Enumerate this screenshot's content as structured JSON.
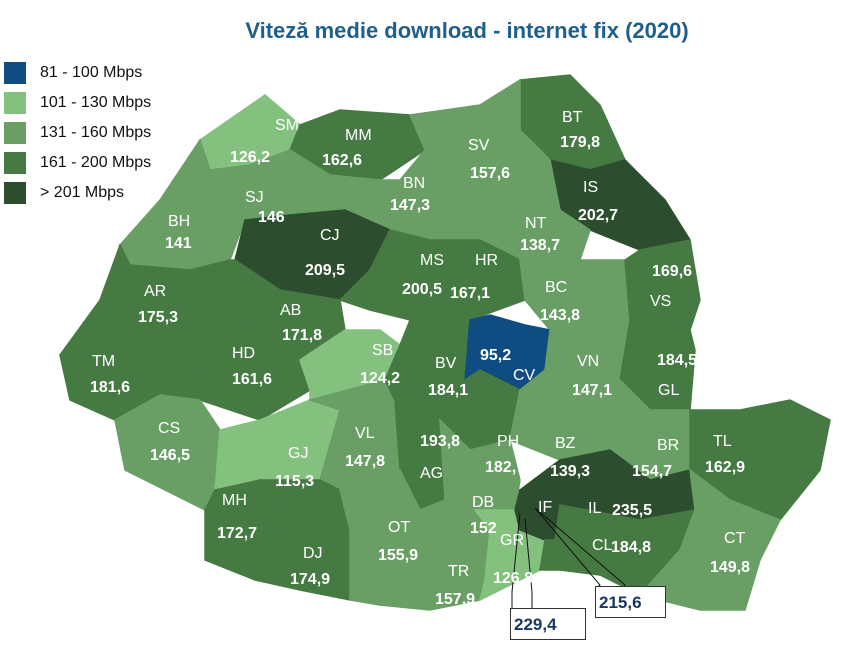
{
  "title": "Viteză medie download - internet fix (2020)",
  "legend": [
    {
      "key": "c1",
      "label": "81 - 100 Mbps",
      "color": "#0f4c81"
    },
    {
      "key": "c2",
      "label": "101 - 130 Mbps",
      "color": "#84c17f"
    },
    {
      "key": "c3",
      "label": "131 - 160 Mbps",
      "color": "#699f65"
    },
    {
      "key": "c4",
      "label": "161 - 200 Mbps",
      "color": "#467a43"
    },
    {
      "key": "c5",
      "label": "> 201 Mbps",
      "color": "#2d4e2e"
    }
  ],
  "counties": [
    {
      "code": "SM",
      "value": "126,2",
      "cat": "c2"
    },
    {
      "code": "MM",
      "value": "162,6",
      "cat": "c4"
    },
    {
      "code": "BT",
      "value": "179,8",
      "cat": "c4"
    },
    {
      "code": "SV",
      "value": "157,6",
      "cat": "c3"
    },
    {
      "code": "IS",
      "value": "202,7",
      "cat": "c5"
    },
    {
      "code": "NT",
      "value": "138,7",
      "cat": "c3"
    },
    {
      "code": "BN",
      "value": "147,3",
      "cat": "c3"
    },
    {
      "code": "SJ",
      "value": "146",
      "cat": "c3"
    },
    {
      "code": "BH",
      "value": "141",
      "cat": "c3"
    },
    {
      "code": "CJ",
      "value": "209,5",
      "cat": "c5"
    },
    {
      "code": "MS",
      "value": "200,5",
      "cat": "c4"
    },
    {
      "code": "HR",
      "value": "167,1",
      "cat": "c4"
    },
    {
      "code": "BC",
      "value": "143,8",
      "cat": "c3"
    },
    {
      "code": "VS",
      "value": "169,6",
      "cat": "c4"
    },
    {
      "code": "AR",
      "value": "175,3",
      "cat": "c4"
    },
    {
      "code": "AB",
      "value": "171,8",
      "cat": "c4"
    },
    {
      "code": "TM",
      "value": "181,6",
      "cat": "c4"
    },
    {
      "code": "HD",
      "value": "161,6",
      "cat": "c4"
    },
    {
      "code": "SB",
      "value": "124,2",
      "cat": "c2"
    },
    {
      "code": "BV",
      "value": "184,1",
      "cat": "c4"
    },
    {
      "code": "CV",
      "value": "95,2",
      "cat": "c1"
    },
    {
      "code": "VN",
      "value": "147,1",
      "cat": "c3"
    },
    {
      "code": "GL",
      "value": "184,5",
      "cat": "c4"
    },
    {
      "code": "CS",
      "value": "146,5",
      "cat": "c3"
    },
    {
      "code": "GJ",
      "value": "115,3",
      "cat": "c2"
    },
    {
      "code": "VL",
      "value": "147,8",
      "cat": "c3"
    },
    {
      "code": "AG",
      "value": "193,8",
      "cat": "c4"
    },
    {
      "code": "PH",
      "value": "182,7",
      "cat": "c4"
    },
    {
      "code": "BZ",
      "value": "139,3",
      "cat": "c3"
    },
    {
      "code": "BR",
      "value": "154,7",
      "cat": "c3"
    },
    {
      "code": "TL",
      "value": "162,9",
      "cat": "c4"
    },
    {
      "code": "MH",
      "value": "172,7",
      "cat": "c4"
    },
    {
      "code": "DJ",
      "value": "174,9",
      "cat": "c4"
    },
    {
      "code": "OT",
      "value": "155,9",
      "cat": "c3"
    },
    {
      "code": "TR",
      "value": "157,9",
      "cat": "c3"
    },
    {
      "code": "DB",
      "value": "152",
      "cat": "c3"
    },
    {
      "code": "GR",
      "value": "126,8",
      "cat": "c2"
    },
    {
      "code": "IF",
      "value": "",
      "cat": "c5"
    },
    {
      "code": "IL",
      "value": "235,5",
      "cat": "c5"
    },
    {
      "code": "CL",
      "value": "184,8",
      "cat": "c4"
    },
    {
      "code": "CT",
      "value": "149,8",
      "cat": "c3"
    }
  ],
  "callouts": [
    {
      "value": "229,4"
    },
    {
      "value": "215,6"
    }
  ]
}
